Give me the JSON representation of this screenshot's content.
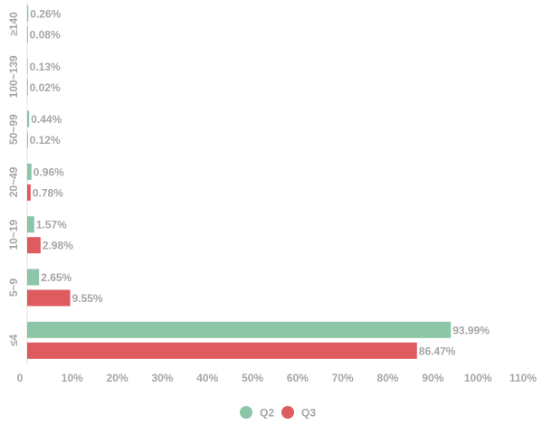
{
  "chart_data": {
    "type": "bar",
    "orientation": "horizontal",
    "categories": [
      "≥140",
      "100~139",
      "50~99",
      "20~49",
      "10~19",
      "5~9",
      "≤4"
    ],
    "series": [
      {
        "name": "Q2",
        "color": "#8cc5a7",
        "values": [
          0.26,
          0.13,
          0.44,
          0.96,
          1.57,
          2.65,
          93.99
        ],
        "labels": [
          "0.26%",
          "0.13%",
          "0.44%",
          "0.96%",
          "1.57%",
          "2.65%",
          "93.99%"
        ]
      },
      {
        "name": "Q3",
        "color": "#de5b60",
        "values": [
          0.08,
          0.02,
          0.12,
          0.78,
          2.98,
          9.55,
          86.47
        ],
        "labels": [
          "0.08%",
          "0.02%",
          "0.12%",
          "0.78%",
          "2.98%",
          "9.55%",
          "86.47%"
        ]
      }
    ],
    "xlim": [
      0,
      110
    ],
    "xticks": [
      "0",
      "10%",
      "20%",
      "30%",
      "40%",
      "50%",
      "60%",
      "70%",
      "80%",
      "90%",
      "100%",
      "110%"
    ],
    "title": "",
    "xlabel": "",
    "ylabel": "",
    "grid": false,
    "legend_position": "bottom-center"
  }
}
